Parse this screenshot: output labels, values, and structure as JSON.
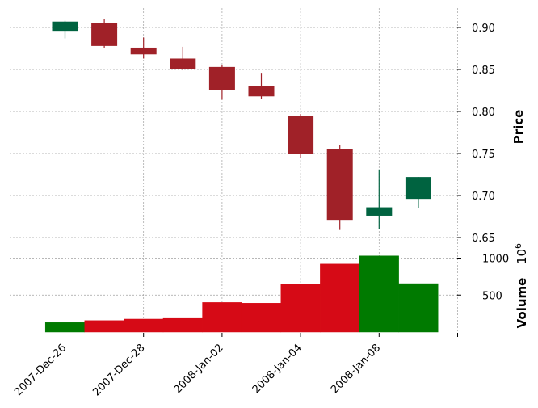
{
  "chart_data": {
    "type": "candlestick",
    "price_ylabel": "Price",
    "volume_ylabel": "Volume",
    "volume_exponent_label": "10",
    "volume_exponent_power": "6",
    "price_ylim": [
      0.65,
      0.92
    ],
    "price_yticks": [
      0.65,
      0.7,
      0.75,
      0.8,
      0.85,
      0.9
    ],
    "price_tick_labels": [
      "0.65",
      "0.70",
      "0.75",
      "0.80",
      "0.85",
      "0.90"
    ],
    "volume_ylim": [
      0,
      1200
    ],
    "volume_yticks": [
      500,
      1000
    ],
    "volume_tick_labels": [
      "500",
      "1000"
    ],
    "x_tick_indices": [
      0,
      2,
      4,
      6,
      8,
      10
    ],
    "x_tick_labels": [
      "2007-Dec-26",
      "2007-Dec-28",
      "2008-Jan-02",
      "2008-Jan-04",
      "2008-Jan-08",
      ""
    ],
    "grid": true,
    "colors": {
      "up": "#006340",
      "down": "#a02128",
      "volume_up": "#007a00",
      "volume_down": "#d60a16"
    },
    "candles": [
      {
        "open": 0.896,
        "high": 0.908,
        "low": 0.887,
        "close": 0.907,
        "volume": 130
      },
      {
        "open": 0.905,
        "high": 0.91,
        "low": 0.876,
        "close": 0.878,
        "volume": 155
      },
      {
        "open": 0.876,
        "high": 0.888,
        "low": 0.863,
        "close": 0.868,
        "volume": 175
      },
      {
        "open": 0.863,
        "high": 0.877,
        "low": 0.849,
        "close": 0.85,
        "volume": 195
      },
      {
        "open": 0.853,
        "high": 0.855,
        "low": 0.814,
        "close": 0.825,
        "volume": 400
      },
      {
        "open": 0.83,
        "high": 0.846,
        "low": 0.815,
        "close": 0.818,
        "volume": 390
      },
      {
        "open": 0.795,
        "high": 0.797,
        "low": 0.745,
        "close": 0.75,
        "volume": 650
      },
      {
        "open": 0.755,
        "high": 0.76,
        "low": 0.659,
        "close": 0.671,
        "volume": 920
      },
      {
        "open": 0.676,
        "high": 0.731,
        "low": 0.66,
        "close": 0.686,
        "volume": 1030
      },
      {
        "open": 0.696,
        "high": 0.722,
        "low": 0.685,
        "close": 0.722,
        "volume": 655
      }
    ]
  }
}
